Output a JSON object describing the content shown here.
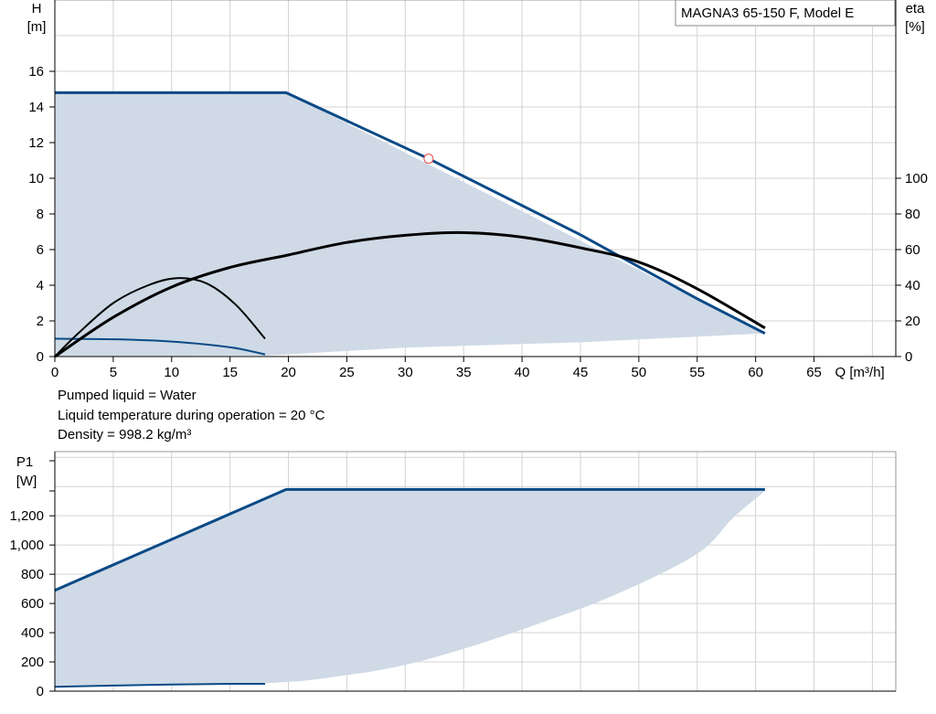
{
  "legend_box": {
    "label": "MAGNA3 65-150 F, Model E"
  },
  "info_lines": [
    "Pumped liquid = Water",
    "Liquid temperature during operation = 20 °C",
    "Density = 998.2 kg/m³"
  ],
  "colors": {
    "envelope_fill": "#cfdae6",
    "max_curve": "#0b4a86",
    "eta_curve": "#000000",
    "grid": "#d3d3d3",
    "duty_point": "#e8494b"
  },
  "chart_data": [
    {
      "type": "line",
      "x": {
        "label": "Q [m³/h]",
        "lim": [
          0,
          72
        ],
        "ticks": [
          "0",
          "5",
          "10",
          "15",
          "20",
          "25",
          "30",
          "35",
          "40",
          "45",
          "50",
          "55",
          "60",
          "65"
        ]
      },
      "y_left": {
        "label_line1": "H",
        "label_line2": "[m]",
        "lim": [
          0,
          20
        ],
        "ticks": [
          "0",
          "2",
          "4",
          "6",
          "8",
          "10",
          "12",
          "14",
          "16"
        ]
      },
      "y_right": {
        "label_line1": "eta",
        "label_line2": "[%]",
        "lim": [
          0,
          200
        ],
        "ticks": [
          "0",
          "20",
          "40",
          "60",
          "80",
          "100"
        ]
      },
      "grid": true,
      "envelope_upper": [
        [
          0,
          14.8
        ],
        [
          19.8,
          14.8
        ],
        [
          60.8,
          1.3
        ]
      ],
      "envelope_lower": [
        [
          60.8,
          1.3
        ],
        [
          45,
          0.8
        ],
        [
          30,
          0.5
        ],
        [
          18,
          0.05
        ],
        [
          0,
          0
        ]
      ],
      "series": [
        {
          "role": "max_head",
          "points": [
            [
              0,
              14.8
            ],
            [
              19.8,
              14.8
            ],
            [
              32,
              11.1
            ],
            [
              45,
              6.83
            ],
            [
              55,
              3.24
            ],
            [
              60.8,
              1.3
            ]
          ]
        },
        {
          "role": "min_head",
          "points": [
            [
              0,
              1.0
            ],
            [
              5,
              0.97
            ],
            [
              10,
              0.84
            ],
            [
              15,
              0.52
            ],
            [
              18,
              0.12
            ]
          ]
        },
        {
          "role": "eta_max",
          "axis": "right",
          "points": [
            [
              0,
              0
            ],
            [
              5,
              22
            ],
            [
              10,
              39
            ],
            [
              15,
              50
            ],
            [
              20,
              57
            ],
            [
              25,
              64
            ],
            [
              30,
              68
            ],
            [
              35,
              69.5
            ],
            [
              40,
              67
            ],
            [
              45,
              61
            ],
            [
              50,
              53
            ],
            [
              55,
              38
            ],
            [
              60.8,
              16
            ]
          ]
        },
        {
          "role": "eta_min",
          "axis": "right",
          "points": [
            [
              0,
              0
            ],
            [
              2,
              13
            ],
            [
              5,
              30
            ],
            [
              8,
              40
            ],
            [
              10.5,
              44
            ],
            [
              13,
              41
            ],
            [
              15.5,
              29
            ],
            [
              18,
              10
            ]
          ]
        }
      ],
      "duty_point": {
        "x": 32,
        "y": 11.1
      }
    },
    {
      "type": "line",
      "x": {
        "label": "",
        "lim": [
          0,
          72
        ]
      },
      "y_left": {
        "label_line1": "P1",
        "label_line2": "[W]",
        "lim": [
          0,
          1600
        ],
        "ticks": [
          "0",
          "200",
          "400",
          "600",
          "800",
          "1,000",
          "1,200"
        ]
      },
      "grid": true,
      "envelope_upper": [
        [
          0,
          690
        ],
        [
          19.8,
          1380
        ],
        [
          60.8,
          1380
        ]
      ],
      "envelope_lower": [
        [
          60.8,
          1370
        ],
        [
          58,
          1180
        ],
        [
          55,
          940
        ],
        [
          48,
          660
        ],
        [
          41,
          450
        ],
        [
          35,
          290
        ],
        [
          30,
          180
        ],
        [
          25,
          110
        ],
        [
          18,
          55
        ],
        [
          0,
          30
        ]
      ],
      "series": [
        {
          "role": "max_power",
          "points": [
            [
              0,
              690
            ],
            [
              19.8,
              1380
            ],
            [
              60.8,
              1380
            ]
          ]
        },
        {
          "role": "min_power",
          "points": [
            [
              0,
              30
            ],
            [
              5,
              38
            ],
            [
              10,
              45
            ],
            [
              15,
              50
            ],
            [
              18,
              50
            ]
          ]
        }
      ]
    }
  ]
}
